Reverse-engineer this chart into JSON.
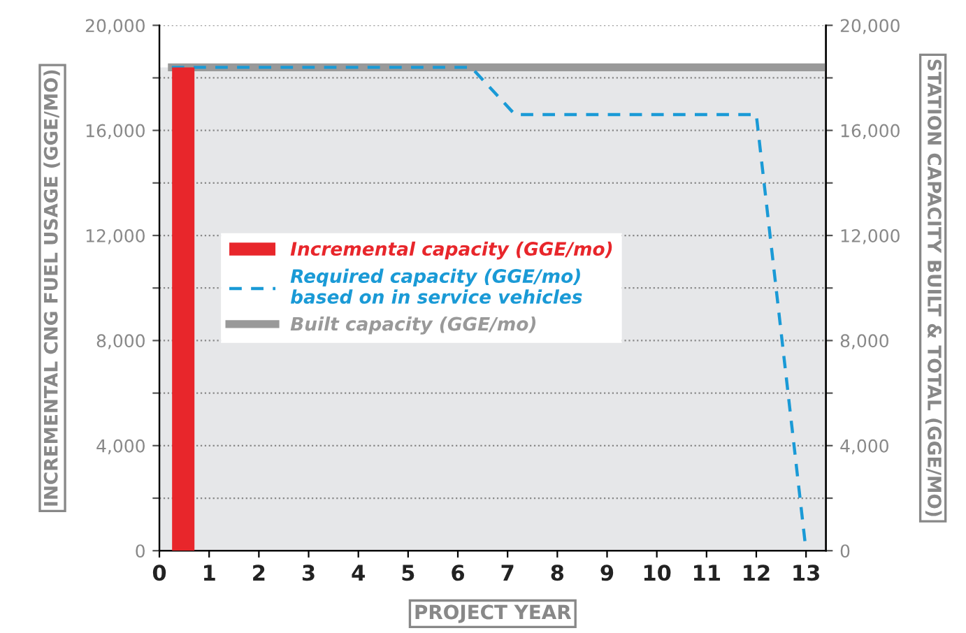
{
  "chart_data": {
    "type": "bar",
    "xlabel": "PROJECT YEAR",
    "ylabel": "INCREMENTAL CNG FUEL USAGE (GGE/MO)",
    "y2label": "STATION CAPACITY BUILT & TOTAL (GGE/MO)",
    "xlim": [
      0,
      13.4
    ],
    "xticks": [
      0,
      1,
      2,
      3,
      4,
      5,
      6,
      7,
      8,
      9,
      10,
      11,
      12,
      13
    ],
    "ylim": [
      0,
      20000
    ],
    "yticks": [
      0,
      {
        "value": 2000,
        "label": null
      },
      {
        "value": 4000,
        "label": "4,000"
      },
      {
        "value": 6000,
        "label": null
      },
      {
        "value": 8000,
        "label": "8,000"
      },
      {
        "value": 10000,
        "label": null
      },
      {
        "value": 12000,
        "label": "12,000"
      },
      {
        "value": 14000,
        "label": null
      },
      {
        "value": 16000,
        "label": "16,000"
      },
      {
        "value": 18000,
        "label": null
      },
      {
        "value": 20000,
        "label": "20,000"
      }
    ],
    "y2lim": [
      0,
      20000
    ],
    "y2ticks": [
      0,
      {
        "value": 2000,
        "label": null
      },
      {
        "value": 4000,
        "label": "4,000"
      },
      {
        "value": 6000,
        "label": null
      },
      {
        "value": 8000,
        "label": "8,000"
      },
      {
        "value": 10000,
        "label": null
      },
      {
        "value": 12000,
        "label": "12,000"
      },
      {
        "value": 14000,
        "label": null
      },
      {
        "value": 16000,
        "label": "16,000"
      },
      {
        "value": 18000,
        "label": null
      },
      {
        "value": 20000,
        "label": "20,000"
      }
    ],
    "bands": [
      {
        "axis": "y",
        "from": 0,
        "to": 18400,
        "color": "#e6e7e9"
      }
    ],
    "grid": "y",
    "legend": "center left",
    "marker": "none",
    "series": [
      {
        "name": "Built capacity (GGE/mo)",
        "type": "line",
        "color": "#999999",
        "x": [
          0.25,
          13.4
        ],
        "values": [
          18400,
          18400
        ],
        "axis": "y2"
      },
      {
        "name": "Incremental capacity (GGE/mo)",
        "color": "#e8262b",
        "x": [
          0.48
        ],
        "values": [
          18400
        ]
      },
      {
        "name": "Required capacity (GGE/mo)\nbased on in service vehicles",
        "type": "line",
        "line_style": "dashed",
        "color": "#1a9ad6",
        "x": [
          0.25,
          6.27,
          7.15,
          12.0,
          13.0
        ],
        "values": [
          18400,
          18400,
          16600,
          16600,
          0
        ],
        "axis": "y2"
      }
    ]
  }
}
